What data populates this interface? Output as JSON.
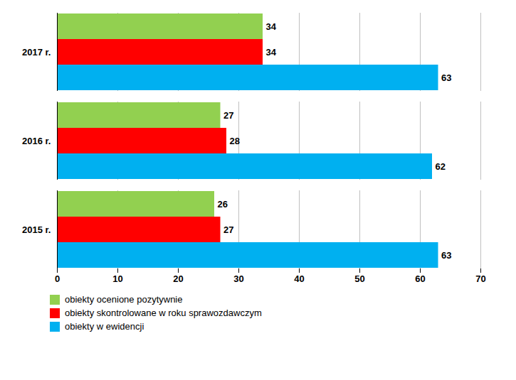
{
  "chart_data": {
    "type": "bar",
    "orientation": "horizontal",
    "categories": [
      "2015 r.",
      "2016 r.",
      "2017 r."
    ],
    "series": [
      {
        "name": "obiekty ocenione pozytywnie",
        "color": "#92D050",
        "values": [
          26,
          27,
          34
        ]
      },
      {
        "name": "obiekty skontrolowane w roku sprawozdawczym",
        "color": "#FF0000",
        "values": [
          27,
          28,
          34
        ]
      },
      {
        "name": "obiekty w ewidencji",
        "color": "#00B0F0",
        "values": [
          63,
          62,
          63
        ]
      }
    ],
    "xlim": [
      0,
      70
    ],
    "xticks": [
      0,
      10,
      20,
      30,
      40,
      50,
      60,
      70
    ],
    "grid": true,
    "data_labels": true,
    "legend": "bottom"
  }
}
